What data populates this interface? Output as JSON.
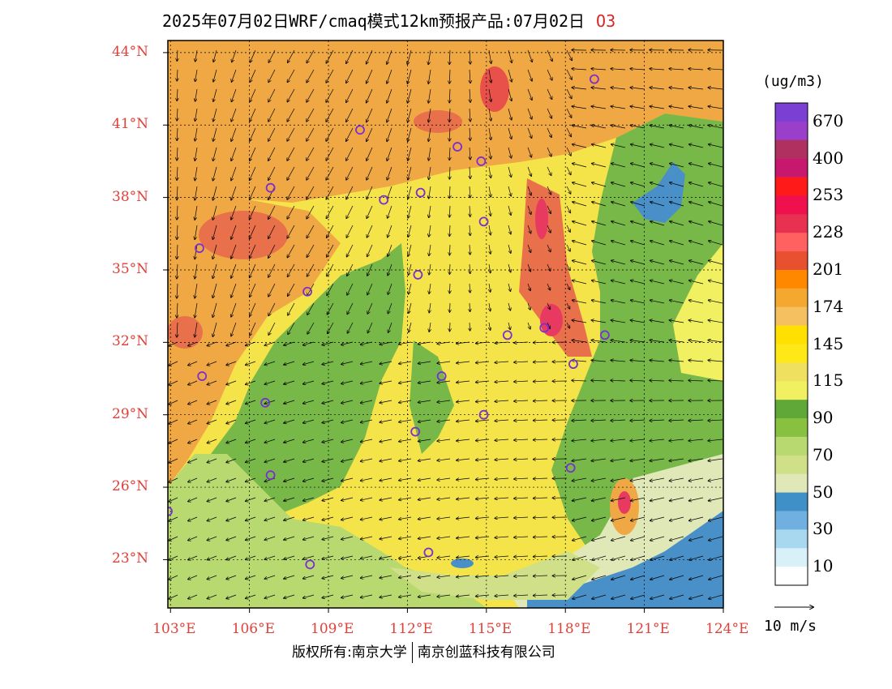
{
  "title": {
    "text": "2025年07月02日WRF/cmaq模式12km预报产品:07月02日",
    "species": "O3"
  },
  "axes": {
    "lat_labels": [
      "44°N",
      "41°N",
      "38°N",
      "35°N",
      "32°N",
      "29°N",
      "26°N",
      "23°N"
    ],
    "lon_labels": [
      "103°E",
      "106°E",
      "109°E",
      "112°E",
      "115°E",
      "118°E",
      "121°E",
      "124°E"
    ],
    "lat_range": [
      21,
      44.5
    ],
    "lon_range": [
      102.9,
      124
    ]
  },
  "colorbar": {
    "unit": "(ug/m3)",
    "colors": [
      "#7b3fd4",
      "#9a3fc9",
      "#b03060",
      "#c8186e",
      "#ff1a1a",
      "#f0104e",
      "#e83050",
      "#ff6060",
      "#e85030",
      "#ff8800",
      "#f5a830",
      "#f5c060",
      "#ffe000",
      "#ffe818",
      "#f0e060",
      "#f0f060",
      "#60a838",
      "#88c040",
      "#b8d870",
      "#d0e088",
      "#e0e8b8",
      "#4090c8",
      "#70b0e0",
      "#a8d8f0",
      "#d8f0f8",
      "#ffffff"
    ],
    "labels": [
      "670",
      "400",
      "253",
      "228",
      "201",
      "174",
      "145",
      "115",
      "90",
      "70",
      "50",
      "30",
      "10"
    ]
  },
  "vector_legend": {
    "label": "10 m/s"
  },
  "stations": [
    {
      "lon": 119.1,
      "lat": 42.9
    },
    {
      "lon": 110.2,
      "lat": 40.8
    },
    {
      "lon": 113.9,
      "lat": 40.1
    },
    {
      "lon": 114.8,
      "lat": 39.5
    },
    {
      "lon": 106.8,
      "lat": 38.4
    },
    {
      "lon": 111.1,
      "lat": 37.9
    },
    {
      "lon": 112.5,
      "lat": 38.2
    },
    {
      "lon": 114.9,
      "lat": 37.0
    },
    {
      "lon": 104.1,
      "lat": 35.9
    },
    {
      "lon": 112.4,
      "lat": 34.8
    },
    {
      "lon": 108.2,
      "lat": 34.1
    },
    {
      "lon": 115.8,
      "lat": 32.3
    },
    {
      "lon": 117.2,
      "lat": 32.6
    },
    {
      "lon": 119.5,
      "lat": 32.3
    },
    {
      "lon": 118.3,
      "lat": 31.1
    },
    {
      "lon": 104.2,
      "lat": 30.6
    },
    {
      "lon": 113.3,
      "lat": 30.6
    },
    {
      "lon": 106.6,
      "lat": 29.5
    },
    {
      "lon": 114.9,
      "lat": 29.0
    },
    {
      "lon": 112.3,
      "lat": 28.3
    },
    {
      "lon": 118.2,
      "lat": 26.8
    },
    {
      "lon": 106.8,
      "lat": 26.5
    },
    {
      "lon": 102.9,
      "lat": 25.0
    },
    {
      "lon": 112.8,
      "lat": 23.3
    },
    {
      "lon": 108.3,
      "lat": 22.8
    }
  ],
  "copyright": {
    "left": "版权所有:南京大学",
    "right": "南京创蓝科技有限公司"
  }
}
